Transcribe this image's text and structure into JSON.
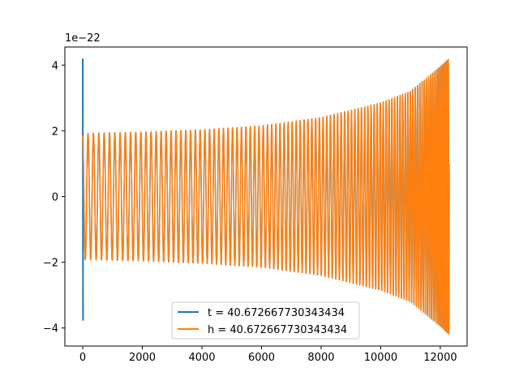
{
  "chart_data": {
    "type": "line",
    "title": "",
    "xlabel": "",
    "ylabel": "",
    "y_offset_label": "1e−22",
    "xlim": [
      -600,
      12900
    ],
    "ylim": [
      -4.55,
      4.55
    ],
    "xticks": [
      0,
      2000,
      4000,
      6000,
      8000,
      10000,
      12000
    ],
    "xtick_labels": [
      "0",
      "2000",
      "4000",
      "6000",
      "8000",
      "10000",
      "12000"
    ],
    "yticks": [
      -4,
      -2,
      0,
      2,
      4
    ],
    "ytick_labels": [
      "−4",
      "−2",
      "0",
      "2",
      "4"
    ],
    "grid": false,
    "legend_position": "bottom-center",
    "n_samples": 12300,
    "series": [
      {
        "name": "t = 40.672667730343434",
        "color": "#1f77b4",
        "description": "oscillating chirp signal",
        "spike_points": [
          {
            "x": 0,
            "y": 4.2
          },
          {
            "x": 10,
            "y": -3.78
          }
        ],
        "envelope": [
          {
            "x": 0,
            "y": 1.92
          },
          {
            "x": 2000,
            "y": 1.96
          },
          {
            "x": 4000,
            "y": 2.03
          },
          {
            "x": 6000,
            "y": 2.15
          },
          {
            "x": 8000,
            "y": 2.4
          },
          {
            "x": 10000,
            "y": 2.85
          },
          {
            "x": 11000,
            "y": 3.2
          },
          {
            "x": 12000,
            "y": 3.95
          },
          {
            "x": 12300,
            "y": 4.2
          }
        ]
      },
      {
        "name": "h = 40.672667730343434",
        "color": "#ff7f0e",
        "description": "oscillating chirp signal",
        "envelope": [
          {
            "x": 0,
            "y": 1.92
          },
          {
            "x": 2000,
            "y": 1.96
          },
          {
            "x": 4000,
            "y": 2.03
          },
          {
            "x": 6000,
            "y": 2.15
          },
          {
            "x": 8000,
            "y": 2.4
          },
          {
            "x": 10000,
            "y": 2.85
          },
          {
            "x": 11000,
            "y": 3.2
          },
          {
            "x": 12000,
            "y": 3.95
          },
          {
            "x": 12300,
            "y": 4.2
          }
        ]
      }
    ]
  }
}
